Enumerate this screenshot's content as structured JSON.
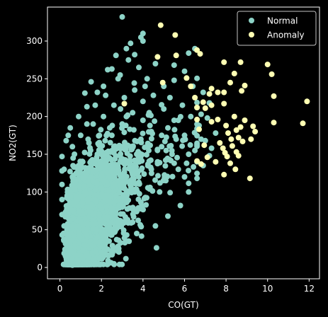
{
  "chart_data": {
    "type": "scatter",
    "xlabel": "CO(GT)",
    "ylabel": "NO2(GT)",
    "xlim": [
      -0.6,
      12.5
    ],
    "ylim": [
      -15,
      345
    ],
    "xticks": [
      0,
      2,
      4,
      6,
      8,
      10,
      12
    ],
    "yticks": [
      0,
      50,
      100,
      150,
      200,
      250,
      300
    ],
    "xtick_labels": [
      "0",
      "2",
      "4",
      "6",
      "8",
      "10",
      "12"
    ],
    "ytick_labels": [
      "0",
      "50",
      "100",
      "150",
      "200",
      "250",
      "300"
    ],
    "grid": false,
    "legend_position": "top-right",
    "background": "#000000",
    "series": [
      {
        "name": "Normal",
        "color": "#8dd3c7",
        "description": "dense cloud of points, CO roughly 0.1-7.5, NO2 roughly 2-330",
        "points": [
          [
            3.0,
            332
          ],
          [
            4.0,
            310
          ],
          [
            3.9,
            305
          ],
          [
            3.4,
            297
          ],
          [
            4.0,
            300
          ],
          [
            3.2,
            290
          ],
          [
            2.7,
            281
          ],
          [
            3.6,
            282
          ],
          [
            6.5,
            290
          ],
          [
            6.2,
            284
          ],
          [
            5.5,
            268
          ],
          [
            2.5,
            263
          ],
          [
            2.3,
            262
          ],
          [
            2.8,
            250
          ],
          [
            1.5,
            246
          ],
          [
            1.8,
            232
          ],
          [
            1.2,
            231
          ],
          [
            2.2,
            228
          ],
          [
            6.9,
            232
          ],
          [
            7.2,
            218
          ],
          [
            6.8,
            203
          ],
          [
            7.1,
            198
          ],
          [
            7.5,
            178
          ],
          [
            7.3,
            158
          ],
          [
            7.0,
            168
          ],
          [
            6.7,
            188
          ],
          [
            2.6,
            5
          ],
          [
            0.6,
            3
          ],
          [
            0.5,
            6
          ],
          [
            0.9,
            10
          ],
          [
            1.3,
            8
          ],
          [
            1.4,
            14
          ],
          [
            1.1,
            22
          ],
          [
            0.3,
            38
          ],
          [
            0.2,
            55
          ],
          [
            0.1,
            70
          ],
          [
            0.1,
            90
          ],
          [
            0.1,
            110
          ],
          [
            0.1,
            128
          ],
          [
            0.1,
            147
          ],
          [
            0.3,
            168
          ],
          [
            0.5,
            185
          ],
          [
            0.9,
            200
          ],
          [
            1.3,
            213
          ],
          [
            3.3,
            35
          ],
          [
            3.7,
            45
          ],
          [
            4.6,
            55
          ],
          [
            5.2,
            68
          ],
          [
            5.8,
            82
          ],
          [
            6.2,
            100
          ],
          [
            6.6,
            118
          ],
          [
            6.9,
            135
          ],
          [
            7.2,
            148
          ],
          [
            5.0,
            240
          ],
          [
            5.5,
            248
          ],
          [
            6.0,
            260
          ],
          [
            4.2,
            250
          ],
          [
            3.5,
            60
          ],
          [
            2.4,
            52
          ],
          [
            1.8,
            40
          ],
          [
            2.2,
            66
          ],
          [
            3.0,
            80
          ],
          [
            4.1,
            92
          ],
          [
            5.1,
            115
          ],
          [
            6.1,
            138
          ],
          [
            1.0,
            60
          ],
          [
            0.8,
            90
          ],
          [
            1.5,
            120
          ],
          [
            2.0,
            150
          ],
          [
            2.5,
            175
          ],
          [
            3.0,
            190
          ],
          [
            3.5,
            205
          ],
          [
            4.0,
            220
          ],
          [
            4.5,
            228
          ],
          [
            5.0,
            210
          ],
          [
            5.5,
            195
          ],
          [
            6.0,
            175
          ],
          [
            1.2,
            100
          ],
          [
            1.8,
            130
          ],
          [
            2.3,
            110
          ],
          [
            2.9,
            140
          ],
          [
            3.4,
            160
          ],
          [
            3.9,
            170
          ],
          [
            4.4,
            180
          ],
          [
            4.9,
            160
          ],
          [
            5.4,
            150
          ],
          [
            0.6,
            120
          ],
          [
            0.7,
            150
          ],
          [
            1.0,
            175
          ],
          [
            1.6,
            190
          ],
          [
            2.1,
            200
          ],
          [
            2.6,
            215
          ],
          [
            3.1,
            225
          ],
          [
            3.6,
            235
          ],
          [
            4.1,
            240
          ],
          [
            0.4,
            80
          ],
          [
            0.9,
            45
          ],
          [
            1.6,
            70
          ],
          [
            2.7,
            95
          ],
          [
            3.8,
            120
          ],
          [
            4.7,
            140
          ],
          [
            5.6,
            170
          ],
          [
            6.3,
            200
          ],
          [
            6.5,
            155
          ],
          [
            6.8,
            170
          ],
          [
            0.3,
            25
          ],
          [
            0.7,
            18
          ],
          [
            1.2,
            30
          ],
          [
            2.0,
            20
          ],
          [
            2.8,
            28
          ],
          [
            1.4,
            165
          ],
          [
            2.4,
            185
          ],
          [
            3.2,
            200
          ],
          [
            4.3,
            205
          ],
          [
            5.3,
            225
          ],
          [
            5.9,
            215
          ],
          [
            6.4,
            240
          ],
          [
            4.8,
            100
          ],
          [
            5.7,
            130
          ],
          [
            6.0,
            120
          ],
          [
            3.6,
            100
          ],
          [
            2.2,
            90
          ],
          [
            1.1,
            140
          ],
          [
            0.5,
            100
          ],
          [
            0.2,
            130
          ],
          [
            0.6,
            160
          ],
          [
            1.7,
            215
          ],
          [
            2.1,
            240
          ],
          [
            2.9,
            255
          ],
          [
            3.8,
            265
          ],
          [
            4.6,
            270
          ],
          [
            3.3,
            275
          ],
          [
            1.9,
            175
          ],
          [
            2.6,
            160
          ],
          [
            3.7,
            150
          ],
          [
            4.4,
            130
          ],
          [
            5.2,
            185
          ],
          [
            4.0,
            195
          ],
          [
            3.0,
            120
          ],
          [
            2.0,
            105
          ],
          [
            1.5,
            80
          ],
          [
            0.9,
            135
          ],
          [
            0.4,
            175
          ],
          [
            1.3,
            190
          ],
          [
            1.8,
            150
          ],
          [
            2.5,
            135
          ],
          [
            3.4,
            115
          ],
          [
            4.2,
            160
          ],
          [
            4.9,
            175
          ],
          [
            5.7,
            195
          ],
          [
            6.2,
            150
          ]
        ]
      },
      {
        "name": "Anomaly",
        "color": "#ffffb3",
        "points": [
          [
            4.85,
            321
          ],
          [
            5.55,
            308
          ],
          [
            6.6,
            288
          ],
          [
            6.75,
            283
          ],
          [
            7.9,
            272
          ],
          [
            8.7,
            272
          ],
          [
            10.0,
            269
          ],
          [
            10.2,
            256
          ],
          [
            4.7,
            279
          ],
          [
            5.6,
            281
          ],
          [
            4.95,
            245
          ],
          [
            6.1,
            251
          ],
          [
            6.3,
            240
          ],
          [
            6.5,
            225
          ],
          [
            6.6,
            212
          ],
          [
            7.3,
            237
          ],
          [
            7.2,
            230
          ],
          [
            7.6,
            232
          ],
          [
            7.9,
            232
          ],
          [
            8.2,
            245
          ],
          [
            8.4,
            257
          ],
          [
            8.9,
            241
          ],
          [
            8.75,
            234
          ],
          [
            10.3,
            227
          ],
          [
            11.9,
            220
          ],
          [
            7.3,
            215
          ],
          [
            3.1,
            217
          ],
          [
            6.9,
            219
          ],
          [
            7.0,
            211
          ],
          [
            7.9,
            217
          ],
          [
            8.0,
            188
          ],
          [
            8.1,
            178
          ],
          [
            8.25,
            170
          ],
          [
            8.5,
            182
          ],
          [
            8.6,
            172
          ],
          [
            8.7,
            186
          ],
          [
            8.4,
            200
          ],
          [
            6.7,
            183
          ],
          [
            9.4,
            180
          ],
          [
            10.3,
            192
          ],
          [
            11.7,
            191
          ],
          [
            9.2,
            170
          ],
          [
            8.8,
            167
          ],
          [
            7.7,
            165
          ],
          [
            7.85,
            158
          ],
          [
            7.95,
            152
          ],
          [
            8.05,
            147
          ],
          [
            8.2,
            138
          ],
          [
            8.45,
            130
          ],
          [
            7.5,
            140
          ],
          [
            7.9,
            123
          ],
          [
            9.15,
            118
          ],
          [
            6.8,
            137
          ],
          [
            6.6,
            141
          ],
          [
            6.6,
            196
          ],
          [
            8.9,
            195
          ],
          [
            9.3,
            187
          ],
          [
            8.6,
            148
          ],
          [
            7.1,
            146
          ],
          [
            7.3,
            193
          ],
          [
            7.6,
            196
          ],
          [
            8.3,
            161
          ],
          [
            8.5,
            153
          ],
          [
            6.95,
            162
          ]
        ]
      }
    ]
  }
}
